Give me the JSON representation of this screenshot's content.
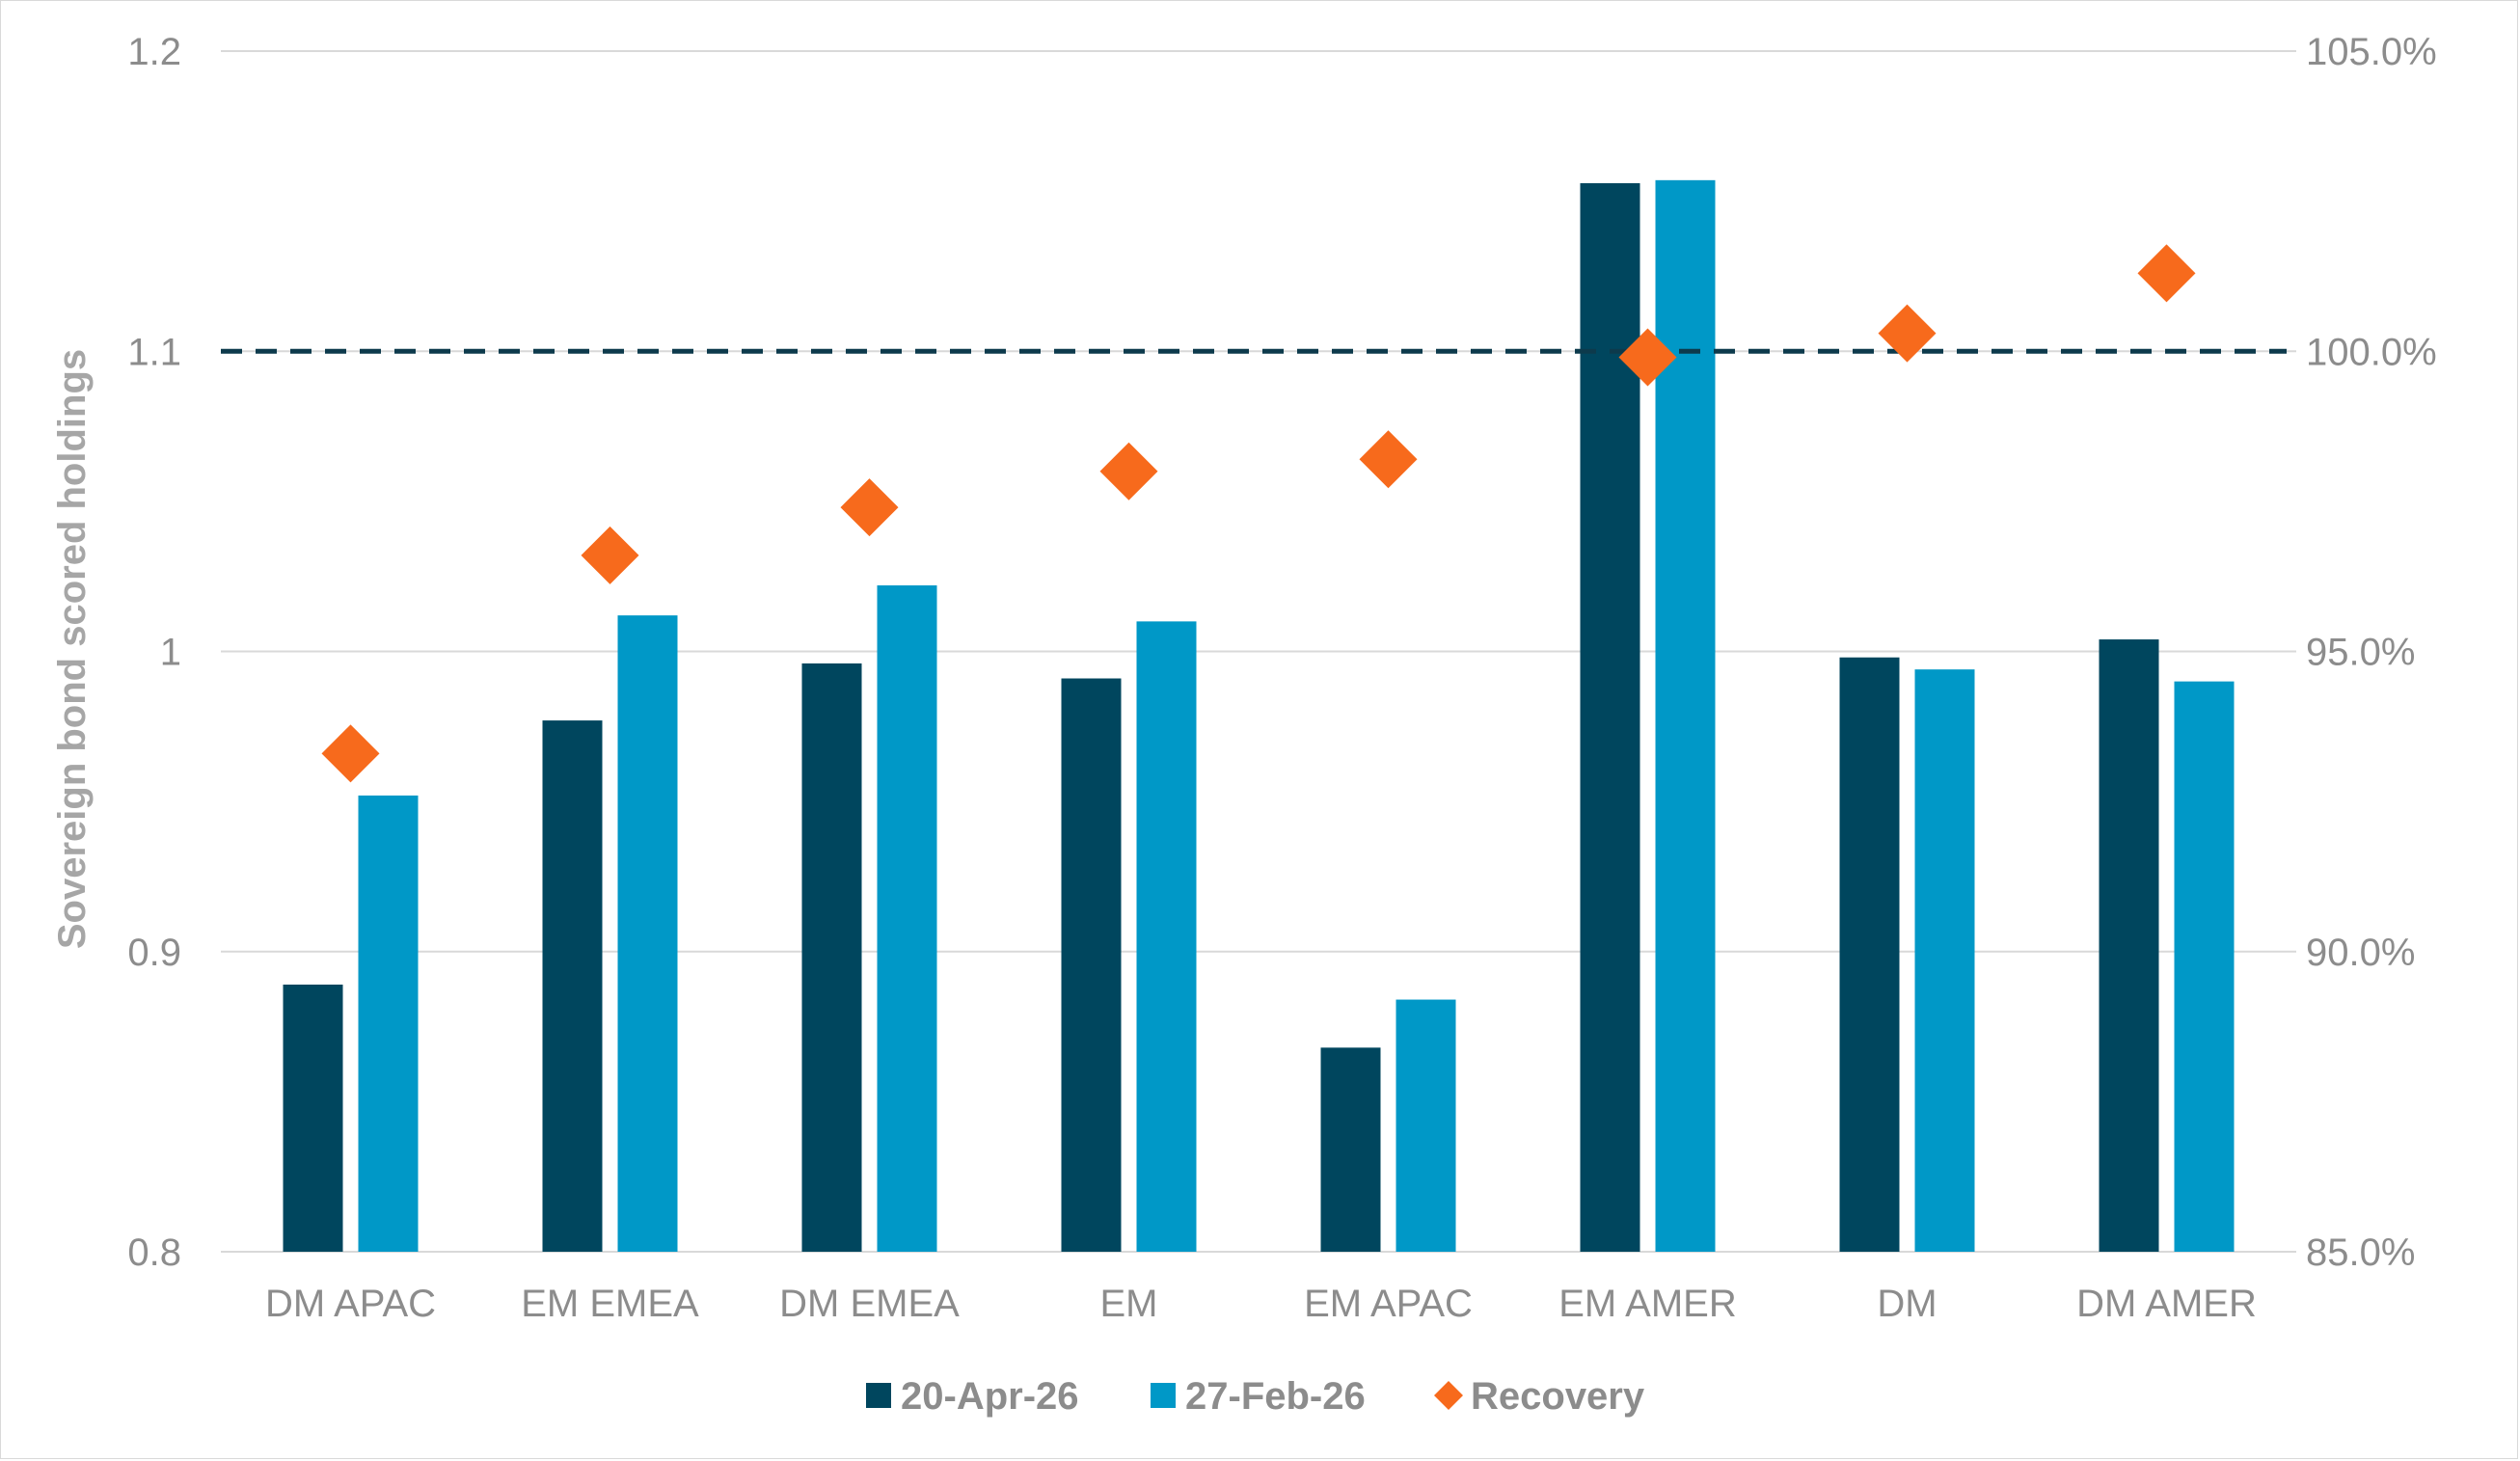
{
  "chart_data": {
    "type": "bar",
    "categories": [
      "DM APAC",
      "EM EMEA",
      "DM EMEA",
      "EM",
      "EM APAC",
      "EM AMER",
      "DM",
      "DM AMER"
    ],
    "series": [
      {
        "name": "20-Apr-26",
        "color": "#00465e",
        "values": [
          0.889,
          0.977,
          0.996,
          0.991,
          0.868,
          1.156,
          0.998,
          1.004
        ]
      },
      {
        "name": "27-Feb-26",
        "color": "#0098c7",
        "values": [
          0.952,
          1.012,
          1.022,
          1.01,
          0.884,
          1.157,
          0.994,
          0.99
        ]
      }
    ],
    "secondary_series": {
      "name": "Recovery",
      "type": "scatter",
      "marker": "diamond",
      "color": "#f76a1c",
      "axis": "right",
      "values": [
        93.3,
        96.6,
        97.4,
        98.0,
        98.2,
        99.9,
        100.3,
        101.3
      ]
    },
    "reference_line": {
      "axis": "right",
      "value": 100.0,
      "style": "dashed",
      "color": "#0d3a4c"
    },
    "ylabel": "Sovereign bond scored holdings",
    "ylim": [
      0.8,
      1.2
    ],
    "yticks": [
      "0.8",
      "0.9",
      "1",
      "1.1",
      "1.2"
    ],
    "y2lim": [
      85,
      105
    ],
    "y2ticks": [
      "85.0%",
      "90.0%",
      "95.0%",
      "100.0%",
      "105.0%"
    ],
    "legend_position": "bottom",
    "grid": true
  }
}
